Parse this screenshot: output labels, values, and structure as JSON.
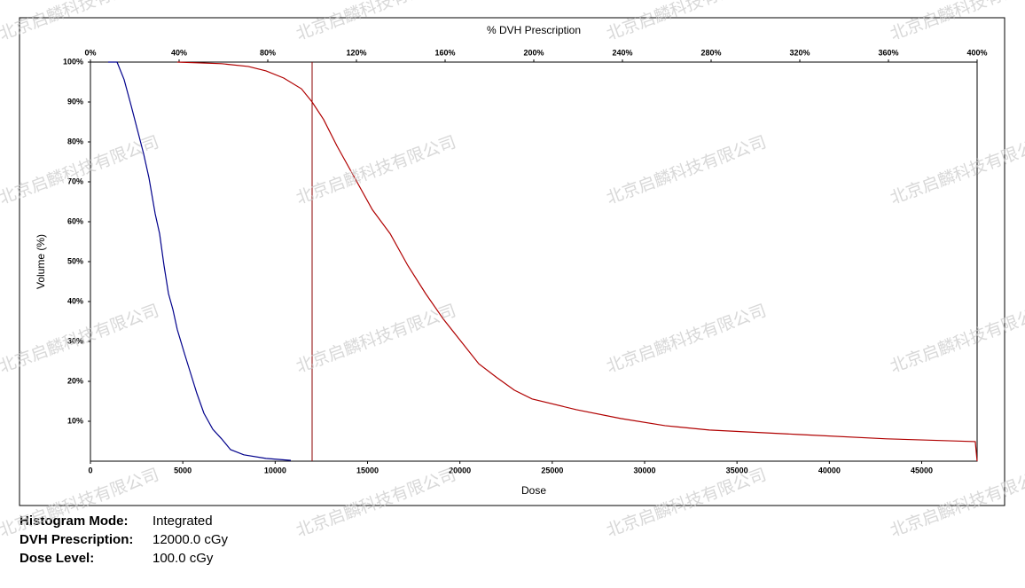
{
  "chart_data": {
    "type": "line",
    "x_label": "Dose",
    "y_label": "Volume (%)",
    "x2_label": "% DVH Prescription",
    "xlim": [
      0,
      48000
    ],
    "xticks": [
      0,
      5000,
      10000,
      15000,
      20000,
      25000,
      30000,
      35000,
      40000,
      45000
    ],
    "x2lim": [
      0,
      400
    ],
    "x2ticks": [
      {
        "value": 0,
        "label": "0%"
      },
      {
        "value": 40,
        "label": "40%"
      },
      {
        "value": 80,
        "label": "80%"
      },
      {
        "value": 120,
        "label": "120%"
      },
      {
        "value": 160,
        "label": "160%"
      },
      {
        "value": 200,
        "label": "200%"
      },
      {
        "value": 240,
        "label": "240%"
      },
      {
        "value": 280,
        "label": "280%"
      },
      {
        "value": 320,
        "label": "320%"
      },
      {
        "value": 360,
        "label": "360%"
      },
      {
        "value": 400,
        "label": "400%"
      }
    ],
    "ylim": [
      0,
      100
    ],
    "yticks": [
      {
        "value": 10,
        "label": "10%"
      },
      {
        "value": 20,
        "label": "20%"
      },
      {
        "value": 30,
        "label": "30%"
      },
      {
        "value": 40,
        "label": "40%"
      },
      {
        "value": 50,
        "label": "50%"
      },
      {
        "value": 60,
        "label": "60%"
      },
      {
        "value": 70,
        "label": "70%"
      },
      {
        "value": 80,
        "label": "80%"
      },
      {
        "value": 90,
        "label": "90%"
      },
      {
        "value": 100,
        "label": "100%"
      }
    ],
    "reference_x": 12000,
    "reference_color": "#8b0000",
    "series": [
      {
        "color": "#00008b",
        "x": [
          960,
          1440,
          1824,
          2208,
          2544,
          2880,
          3168,
          3504,
          3744,
          3984,
          4224,
          4464,
          4700,
          5088,
          5424,
          5760,
          6144,
          6624,
          7100,
          7584,
          8300,
          9500,
          10848
        ],
        "values": [
          100,
          100,
          95.6,
          89,
          83,
          77,
          71,
          62,
          57,
          49,
          42,
          38,
          33,
          27,
          22,
          17,
          12,
          8,
          5.6,
          2.9,
          1.6,
          0.7,
          0.2
        ]
      },
      {
        "color": "#b00000",
        "x": [
          4704,
          7100,
          8544,
          9504,
          10464,
          11424,
          12000,
          12624,
          13344,
          14304,
          15264,
          16224,
          17184,
          18144,
          19104,
          20064,
          21024,
          21984,
          22944,
          23904,
          26304,
          28704,
          31104,
          33504,
          38304,
          43104,
          47900,
          48000
        ],
        "values": [
          100,
          99.6,
          98.9,
          97.8,
          96,
          93.3,
          90,
          85.6,
          79,
          71,
          63,
          57,
          49,
          42,
          35.6,
          30,
          24.4,
          21,
          17.8,
          15.6,
          12.9,
          10.7,
          8.9,
          7.8,
          6.7,
          5.6,
          4.9,
          0
        ]
      }
    ]
  },
  "info": [
    {
      "label": "Histogram Mode:",
      "value": "Integrated"
    },
    {
      "label": "DVH Prescription:",
      "value": "12000.0 cGy"
    },
    {
      "label": "Dose Level:",
      "value": "100.0 cGy"
    }
  ],
  "watermark": "北京启麟科技有限公司"
}
